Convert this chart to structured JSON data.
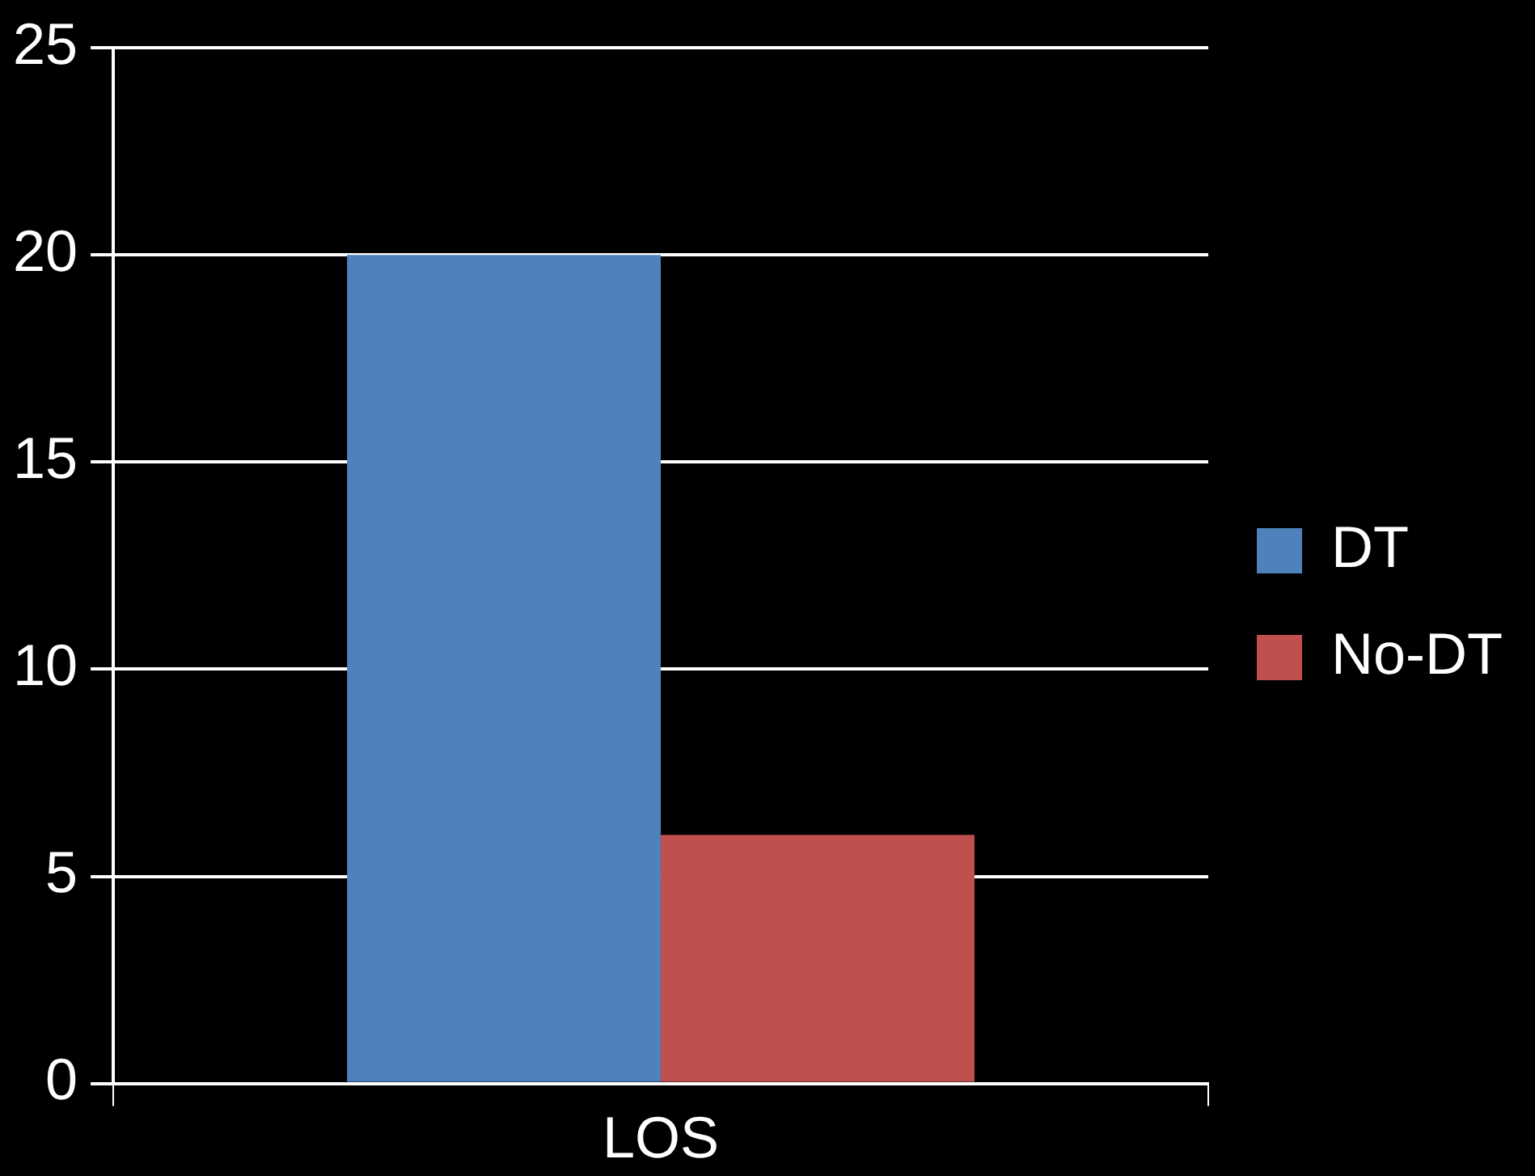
{
  "chart_data": {
    "type": "bar",
    "categories": [
      "LOS"
    ],
    "series": [
      {
        "name": "DT",
        "color": "#4f81bd",
        "values": [
          20
        ]
      },
      {
        "name": "No-DT",
        "color": "#c0504d",
        "values": [
          6
        ]
      }
    ],
    "ylim": [
      0,
      25
    ],
    "yticks": [
      0,
      5,
      10,
      15,
      20,
      25
    ],
    "grid": "y",
    "legend": "right"
  }
}
